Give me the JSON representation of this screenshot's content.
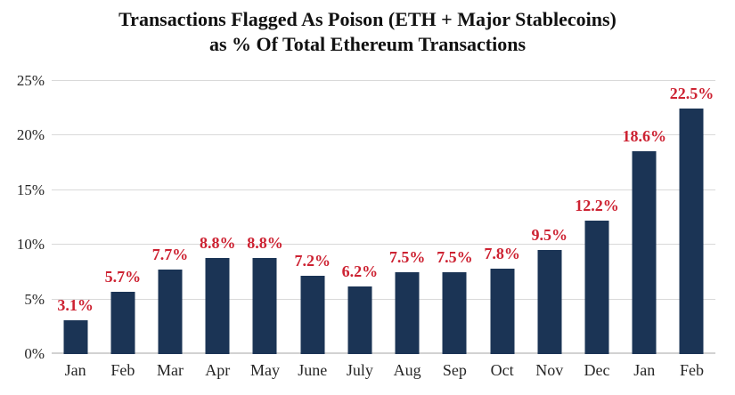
{
  "title": {
    "line1": "Transactions Flagged As Poison (ETH + Major Stablecoins)",
    "line2": "as % Of Total Ethereum Transactions"
  },
  "chart_data": {
    "type": "bar",
    "title": "Transactions Flagged As Poison (ETH + Major Stablecoins) as % Of Total Ethereum Transactions",
    "categories": [
      "Jan",
      "Feb",
      "Mar",
      "Apr",
      "May",
      "June",
      "July",
      "Aug",
      "Sep",
      "Oct",
      "Nov",
      "Dec",
      "Jan",
      "Feb"
    ],
    "values": [
      3.1,
      5.7,
      7.7,
      8.8,
      8.8,
      7.2,
      6.2,
      7.5,
      7.5,
      7.8,
      9.5,
      12.2,
      18.6,
      22.5
    ],
    "value_labels": [
      "3.1%",
      "5.7%",
      "7.7%",
      "8.8%",
      "8.8%",
      "7.2%",
      "6.2%",
      "7.5%",
      "7.5%",
      "7.8%",
      "9.5%",
      "12.2%",
      "18.6%",
      "22.5%"
    ],
    "xlabel": "",
    "ylabel": "",
    "ylim": [
      0,
      25
    ],
    "yticks": [
      0,
      5,
      10,
      15,
      20,
      25
    ],
    "ytick_labels": [
      "0%",
      "5%",
      "10%",
      "15%",
      "20%",
      "25%"
    ],
    "grid": "horizontal",
    "legend": "none",
    "colors": {
      "bar": "#1b3455",
      "value_label": "#cd2232",
      "gridline": "#d9d9d9",
      "axis_line": "#d2d2d2",
      "title_text": "#111111",
      "tick_text": "#262626",
      "background": "#ffffff"
    }
  }
}
